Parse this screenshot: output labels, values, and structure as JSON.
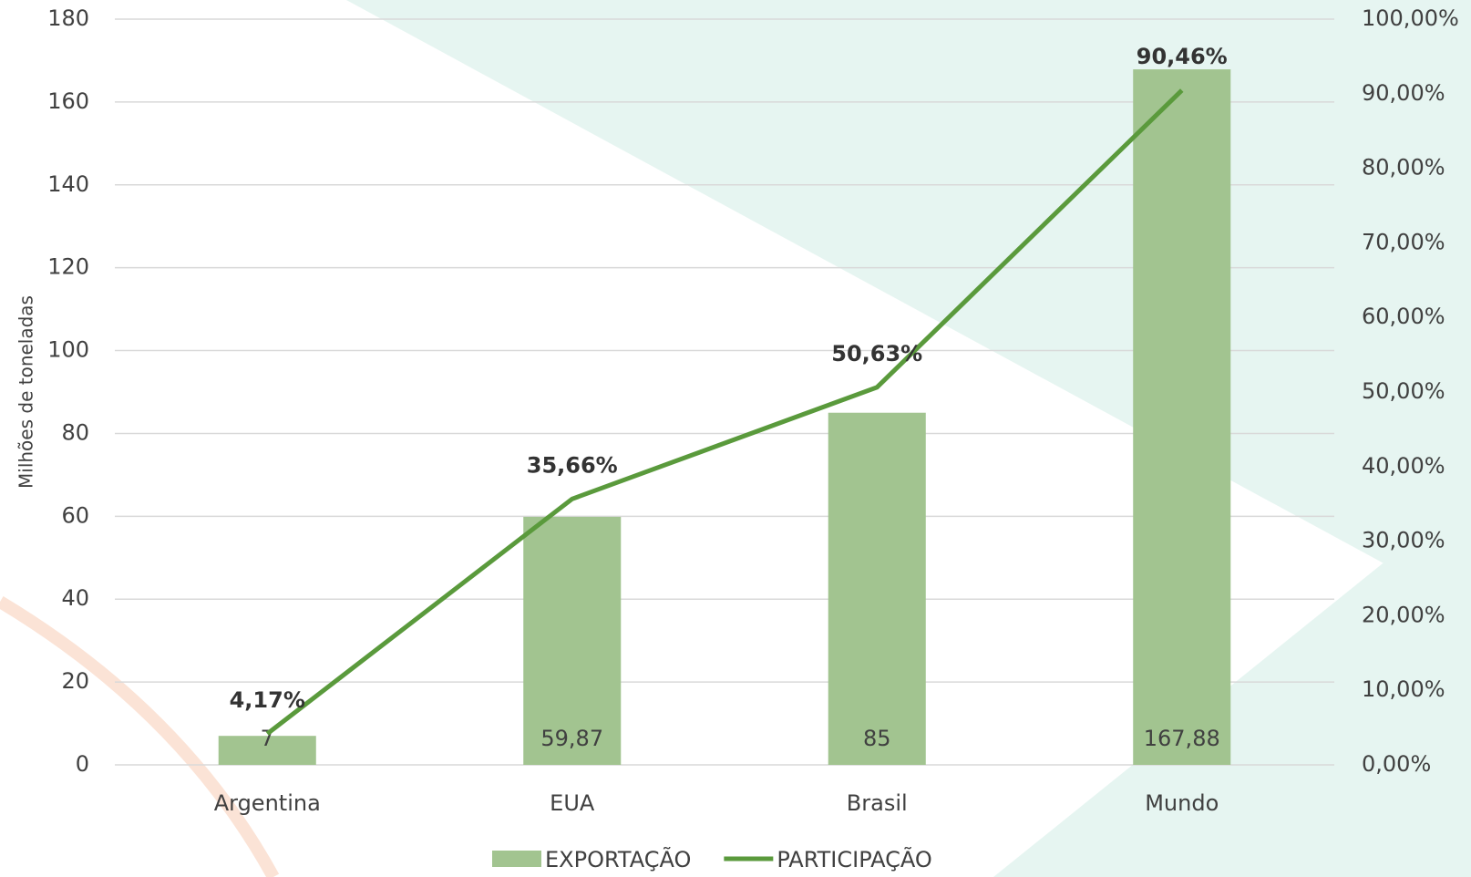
{
  "chart_data": {
    "type": "bar_line",
    "y_label": "Milhões de toneladas",
    "categories": [
      "Argentina",
      "EUA",
      "Brasil",
      "Mundo"
    ],
    "series": [
      {
        "name": "EXPORTAÇÃO",
        "type": "bar",
        "color": "#a2c490",
        "values": [
          7,
          59.87,
          85,
          167.88
        ],
        "value_labels": [
          "7",
          "59,87",
          "85",
          "167,88"
        ]
      },
      {
        "name": "PARTICIPAÇÃO",
        "type": "line",
        "axis": "y2",
        "color": "#5a9a3c",
        "values": [
          4.17,
          35.66,
          50.63,
          90.46
        ],
        "value_labels": [
          "4,17%",
          "35,66%",
          "50,63%",
          "90,46%"
        ]
      }
    ],
    "ylim": [
      0,
      180
    ],
    "yticks": [
      0,
      20,
      40,
      60,
      80,
      100,
      120,
      140,
      160,
      180
    ],
    "y2lim": [
      0,
      100
    ],
    "y2ticks": [
      {
        "value": 0,
        "label": "0,00%"
      },
      {
        "value": 10,
        "label": "10,00%"
      },
      {
        "value": 20,
        "label": "20,00%"
      },
      {
        "value": 30,
        "label": "30,00%"
      },
      {
        "value": 40,
        "label": "40,00%"
      },
      {
        "value": 50,
        "label": "50,00%"
      },
      {
        "value": 60,
        "label": "60,00%"
      },
      {
        "value": 70,
        "label": "70,00%"
      },
      {
        "value": 80,
        "label": "80,00%"
      },
      {
        "value": 90,
        "label": "90,00%"
      },
      {
        "value": 100,
        "label": "100,00%"
      }
    ],
    "grid": true,
    "legend": "bottom"
  }
}
